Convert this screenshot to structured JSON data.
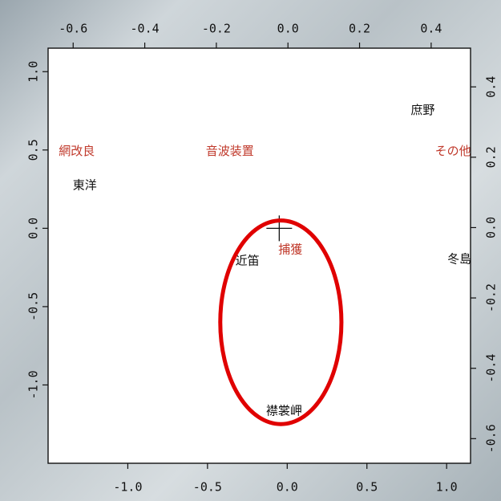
{
  "chart_data": {
    "type": "scatter",
    "title": "",
    "xlabel": "",
    "ylabel": "",
    "axes": {
      "bottom": {
        "range": [
          -1.5,
          1.15
        ],
        "ticks": [
          -1.0,
          -0.5,
          0.0,
          0.5,
          1.0
        ],
        "tick_labels": [
          "-1.0",
          "-0.5",
          "0.0",
          "0.5",
          "1.0"
        ]
      },
      "left": {
        "range": [
          -1.5,
          1.15
        ],
        "ticks": [
          1.0,
          0.5,
          0.0,
          -0.5,
          -1.0
        ],
        "tick_labels": [
          "1.0",
          "0.5",
          "0.0",
          "-0.5",
          "-1.0"
        ]
      },
      "top": {
        "range": [
          -0.67,
          0.51
        ],
        "ticks": [
          -0.6,
          -0.4,
          -0.2,
          0.0,
          0.2,
          0.4
        ],
        "tick_labels": [
          "-0.6",
          "-0.4",
          "-0.2",
          "0.0",
          "0.2",
          "0.4"
        ]
      },
      "right": {
        "range": [
          -0.67,
          0.51
        ],
        "ticks": [
          0.4,
          0.2,
          0.0,
          -0.2,
          -0.4,
          -0.6
        ],
        "tick_labels": [
          "0.4",
          "0.2",
          "0.0",
          "-0.2",
          "-0.4",
          "-0.6"
        ]
      }
    },
    "grid": false,
    "series": [
      {
        "color": "#111111",
        "points": [
          {
            "label": "庶野",
            "x": 0.85,
            "y": 0.75
          },
          {
            "label": "東洋",
            "x": -1.27,
            "y": 0.27
          },
          {
            "label": "近笛",
            "x": -0.25,
            "y": -0.21
          },
          {
            "label": "冬島",
            "x": 1.08,
            "y": -0.2
          },
          {
            "label": "襟裳岬",
            "x": -0.02,
            "y": -1.17
          }
        ]
      },
      {
        "color": "#c0392b",
        "points": [
          {
            "label": "網改良",
            "x": -1.32,
            "y": 0.49
          },
          {
            "label": "音波装置",
            "x": -0.36,
            "y": 0.49
          },
          {
            "label": "その他",
            "x": 1.04,
            "y": 0.49
          },
          {
            "label": "捕獲",
            "x": 0.02,
            "y": -0.14
          }
        ]
      }
    ],
    "origin_marker": {
      "x": -0.05,
      "y": 0.0
    },
    "annotation": {
      "shape": "ellipse",
      "color": "#e00000",
      "cx": -0.04,
      "cy": -0.6,
      "rx": 0.38,
      "ry": 0.65
    }
  }
}
